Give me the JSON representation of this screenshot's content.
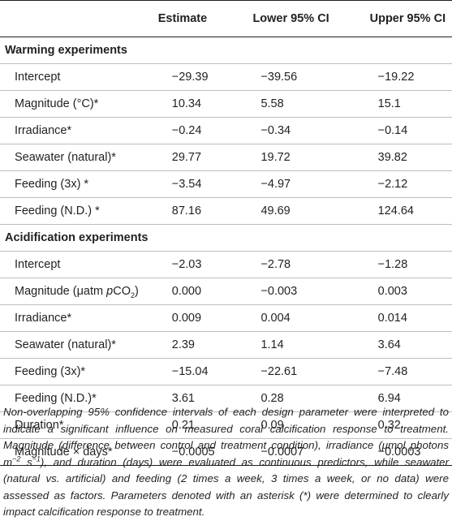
{
  "columns": [
    "",
    "Estimate",
    "Lower 95% CI",
    "Upper 95% CI"
  ],
  "sections": [
    {
      "title": "Warming experiments",
      "rows": [
        {
          "label": "Intercept",
          "est": "−29.39",
          "low": "−39.56",
          "up": "−19.22"
        },
        {
          "label": "Magnitude (°C)*",
          "est": "10.34",
          "low": "5.58",
          "up": "15.1"
        },
        {
          "label": "Irradiance*",
          "est": "−0.24",
          "low": "−0.34",
          "up": "−0.14"
        },
        {
          "label": "Seawater (natural)*",
          "est": "29.77",
          "low": "19.72",
          "up": "39.82"
        },
        {
          "label": "Feeding (3x) *",
          "est": "−3.54",
          "low": "−4.97",
          "up": "−2.12"
        },
        {
          "label": "Feeding (N.D.) *",
          "est": "87.16",
          "low": "49.69",
          "up": "124.64"
        }
      ]
    },
    {
      "title": "Acidification experiments",
      "rows": [
        {
          "label": "Intercept",
          "est": "−2.03",
          "low": "−2.78",
          "up": "−1.28"
        },
        {
          "label_pre": "Magnitude (μatm ",
          "label_em": "p",
          "label_mid": "CO",
          "label_sub": "2",
          "label_post": ")",
          "est": "0.000",
          "low": "−0.003",
          "up": "0.003"
        },
        {
          "label": "Irradiance*",
          "est": "0.009",
          "low": "0.004",
          "up": "0.014"
        },
        {
          "label": "Seawater (natural)*",
          "est": "2.39",
          "low": "1.14",
          "up": "3.64"
        },
        {
          "label": "Feeding (3x)*",
          "est": "−15.04",
          "low": "−22.61",
          "up": "−7.48"
        },
        {
          "label": "Feeding (N.D.)*",
          "est": "3.61",
          "low": "0.28",
          "up": "6.94"
        },
        {
          "label": "Duration*",
          "est": "0.21",
          "low": "0.09",
          "up": "0.32"
        },
        {
          "label": "Magnitude × days*",
          "est": "−0.0005",
          "low": "−0.0007",
          "up": "−0.0003"
        }
      ]
    }
  ],
  "note": {
    "part1": "Non-overlapping 95% confidence intervals of each design parameter were interpreted to indicate a significant influence on measured coral calcification response to treatment. Magnitude (difference between control and treatment condition), irradiance (μmol photons m",
    "sup1": "−2",
    "part2": " s",
    "sup2": "−1",
    "part3": "), and duration (days) were evaluated as continuous predictors, while seawater (natural vs. artificial) and feeding (2 times a week, 3 times a week, or no data) were assessed as factors. Parameters denoted with an asterisk (*) were determined to clearly impact calcification response to treatment."
  }
}
